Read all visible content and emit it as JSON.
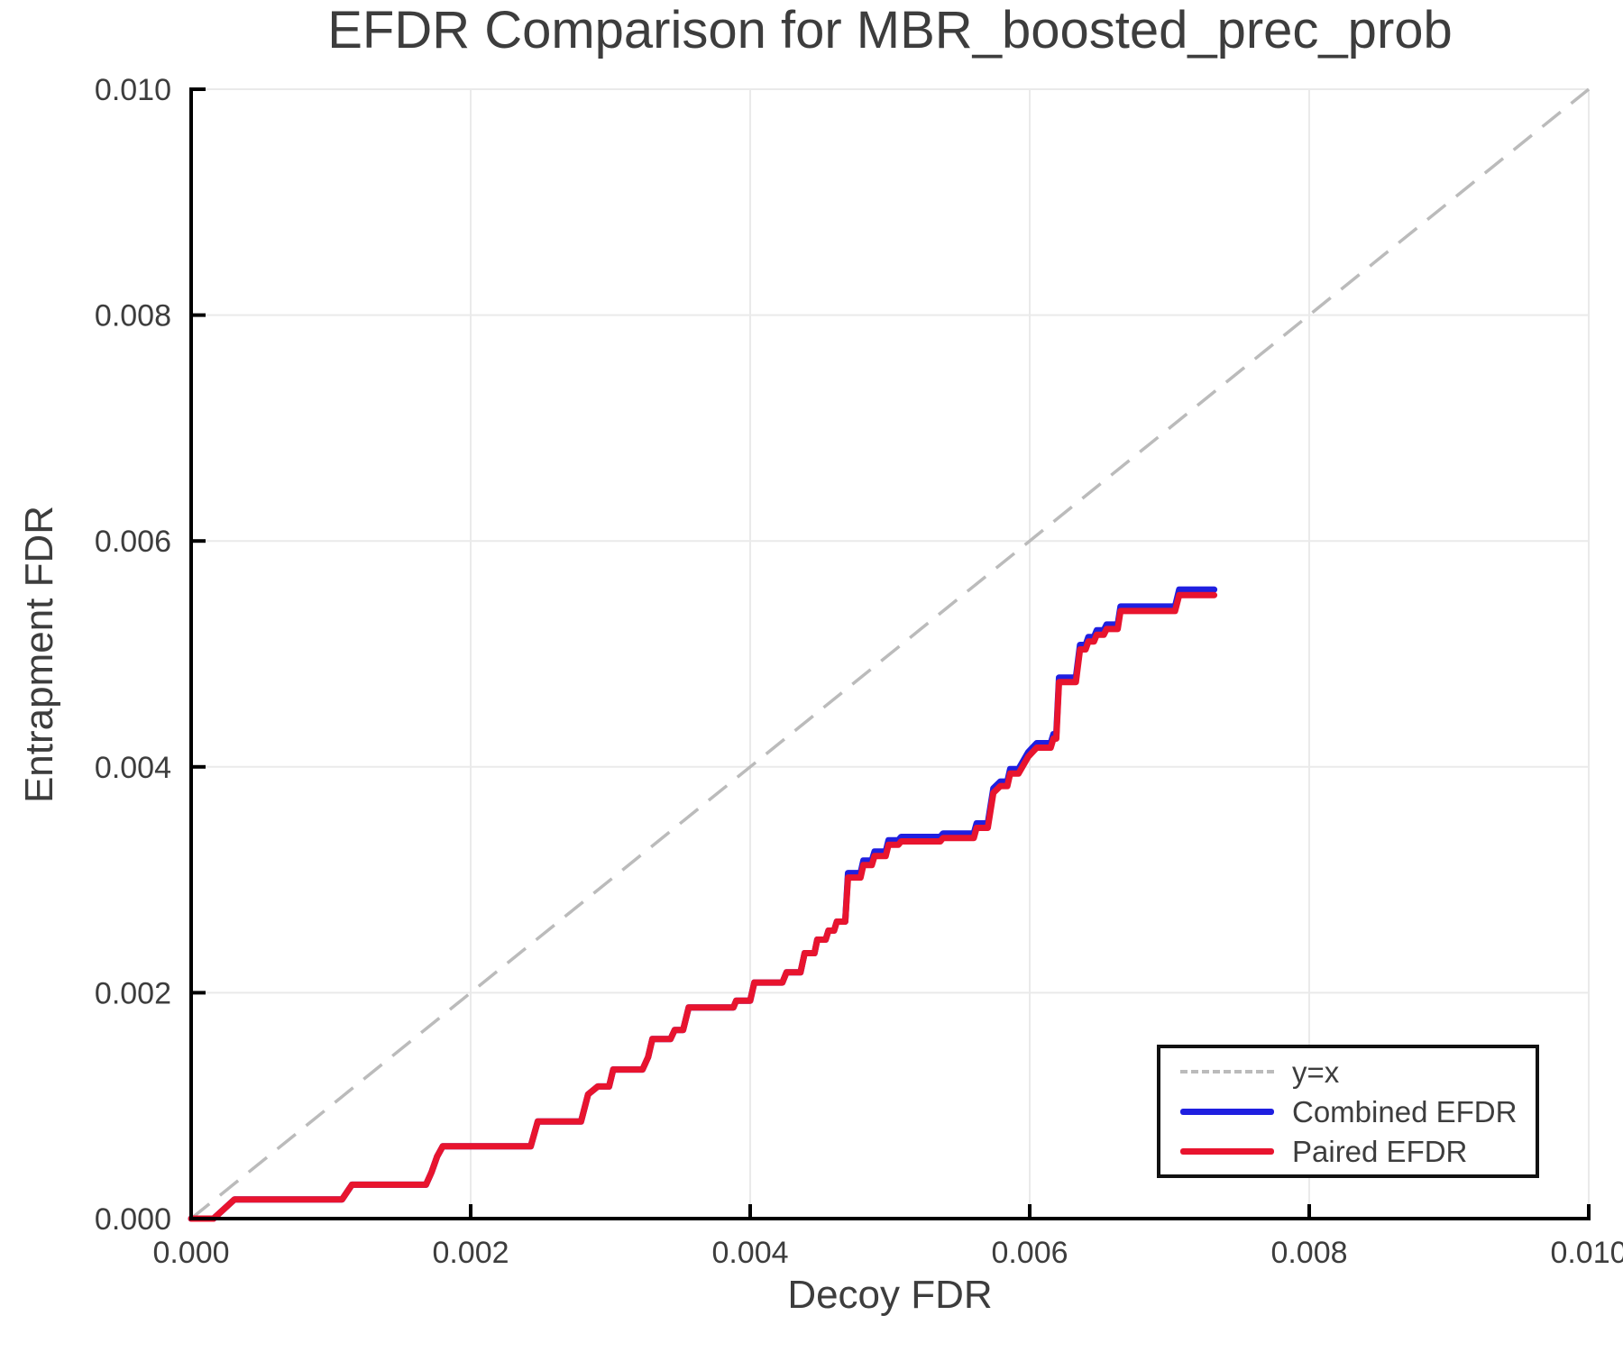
{
  "title": "EFDR Comparison for MBR_boosted_prec_prob",
  "axes": {
    "x_label": "Decoy FDR",
    "y_label": "Entrapment FDR",
    "x_tick_labels": [
      "0.000",
      "0.002",
      "0.004",
      "0.006",
      "0.008",
      "0.010"
    ],
    "x_tick_values": [
      0.0,
      0.002,
      0.004,
      0.006,
      0.008,
      0.01
    ],
    "y_tick_labels": [
      "0.000",
      "0.002",
      "0.004",
      "0.006",
      "0.008",
      "0.010"
    ],
    "y_tick_values": [
      0.0,
      0.002,
      0.004,
      0.006,
      0.008,
      0.01
    ]
  },
  "colors": {
    "grid": "#eaeaea",
    "spine": "#000000",
    "text": "#3d3d3d",
    "diagonal": "#bbbbbb",
    "combined": "#1f1fe0",
    "paired": "#e8142e"
  },
  "legend": {
    "items": [
      {
        "label": "y=x",
        "style": "dashed",
        "color": "#bbbbbb"
      },
      {
        "label": "Combined EFDR",
        "style": "solid",
        "color": "#1f1fe0"
      },
      {
        "label": "Paired EFDR",
        "style": "solid",
        "color": "#e8142e"
      }
    ]
  },
  "chart_data": {
    "type": "line",
    "title": "EFDR Comparison for MBR_boosted_prec_prob",
    "xlabel": "Decoy FDR",
    "ylabel": "Entrapment FDR",
    "xlim": [
      0.0,
      0.01
    ],
    "ylim": [
      0.0,
      0.01
    ],
    "grid": true,
    "legend_position": "lower right",
    "series": [
      {
        "name": "y=x",
        "style": "dashed",
        "color": "#bbbbbb",
        "points": [
          [
            0.0,
            0.0
          ],
          [
            0.01,
            0.01
          ]
        ]
      },
      {
        "name": "Combined EFDR",
        "style": "solid",
        "color": "#1f1fe0",
        "points": [
          [
            0.0,
            0.0
          ],
          [
            0.00016,
            0.0
          ],
          [
            0.00031,
            0.00017
          ],
          [
            0.00108,
            0.00017
          ],
          [
            0.00115,
            0.0003
          ],
          [
            0.00168,
            0.0003
          ],
          [
            0.00172,
            0.00041
          ],
          [
            0.00176,
            0.00055
          ],
          [
            0.0018,
            0.00064
          ],
          [
            0.00243,
            0.00064
          ],
          [
            0.00248,
            0.00086
          ],
          [
            0.00279,
            0.00086
          ],
          [
            0.00284,
            0.0011
          ],
          [
            0.00291,
            0.00117
          ],
          [
            0.00299,
            0.00117
          ],
          [
            0.00302,
            0.00132
          ],
          [
            0.00323,
            0.00132
          ],
          [
            0.00327,
            0.00143
          ],
          [
            0.0033,
            0.00159
          ],
          [
            0.00343,
            0.00159
          ],
          [
            0.00346,
            0.00167
          ],
          [
            0.00352,
            0.00167
          ],
          [
            0.00356,
            0.00187
          ],
          [
            0.00388,
            0.00187
          ],
          [
            0.0039,
            0.00193
          ],
          [
            0.004,
            0.00193
          ],
          [
            0.00403,
            0.00209
          ],
          [
            0.00423,
            0.00209
          ],
          [
            0.00426,
            0.00218
          ],
          [
            0.00436,
            0.00218
          ],
          [
            0.00439,
            0.00235
          ],
          [
            0.00446,
            0.00235
          ],
          [
            0.00448,
            0.00247
          ],
          [
            0.00454,
            0.00247
          ],
          [
            0.00456,
            0.00255
          ],
          [
            0.0046,
            0.00255
          ],
          [
            0.00462,
            0.00263
          ],
          [
            0.00468,
            0.00263
          ],
          [
            0.0047,
            0.00306
          ],
          [
            0.00479,
            0.00306
          ],
          [
            0.00481,
            0.00317
          ],
          [
            0.00487,
            0.00317
          ],
          [
            0.00489,
            0.00325
          ],
          [
            0.00497,
            0.00325
          ],
          [
            0.00499,
            0.00335
          ],
          [
            0.00506,
            0.00335
          ],
          [
            0.00508,
            0.00338
          ],
          [
            0.00536,
            0.00338
          ],
          [
            0.00538,
            0.00341
          ],
          [
            0.0056,
            0.00341
          ],
          [
            0.00562,
            0.0035
          ],
          [
            0.0057,
            0.0035
          ],
          [
            0.00574,
            0.00381
          ],
          [
            0.00579,
            0.00387
          ],
          [
            0.00584,
            0.00387
          ],
          [
            0.00586,
            0.00398
          ],
          [
            0.00592,
            0.00398
          ],
          [
            0.00599,
            0.00413
          ],
          [
            0.00605,
            0.00421
          ],
          [
            0.00615,
            0.00421
          ],
          [
            0.00617,
            0.00429
          ],
          [
            0.00619,
            0.00429
          ],
          [
            0.00621,
            0.00479
          ],
          [
            0.00633,
            0.00479
          ],
          [
            0.00636,
            0.00508
          ],
          [
            0.0064,
            0.00508
          ],
          [
            0.00642,
            0.00515
          ],
          [
            0.00646,
            0.00515
          ],
          [
            0.00648,
            0.00521
          ],
          [
            0.00653,
            0.00521
          ],
          [
            0.00655,
            0.00526
          ],
          [
            0.00663,
            0.00526
          ],
          [
            0.00665,
            0.00542
          ],
          [
            0.00704,
            0.00542
          ],
          [
            0.00707,
            0.00557
          ],
          [
            0.00732,
            0.00557
          ]
        ]
      },
      {
        "name": "Paired EFDR",
        "style": "solid",
        "color": "#e8142e",
        "points": [
          [
            0.0,
            0.0
          ],
          [
            0.00016,
            0.0
          ],
          [
            0.00031,
            0.00017
          ],
          [
            0.00108,
            0.00017
          ],
          [
            0.00115,
            0.0003
          ],
          [
            0.00168,
            0.0003
          ],
          [
            0.00172,
            0.00041
          ],
          [
            0.00176,
            0.00055
          ],
          [
            0.0018,
            0.00064
          ],
          [
            0.00243,
            0.00064
          ],
          [
            0.00248,
            0.00086
          ],
          [
            0.00279,
            0.00086
          ],
          [
            0.00284,
            0.0011
          ],
          [
            0.00291,
            0.00117
          ],
          [
            0.00299,
            0.00117
          ],
          [
            0.00302,
            0.00132
          ],
          [
            0.00323,
            0.00132
          ],
          [
            0.00327,
            0.00143
          ],
          [
            0.0033,
            0.00159
          ],
          [
            0.00343,
            0.00159
          ],
          [
            0.00346,
            0.00167
          ],
          [
            0.00352,
            0.00167
          ],
          [
            0.00356,
            0.00187
          ],
          [
            0.00388,
            0.00187
          ],
          [
            0.0039,
            0.00193
          ],
          [
            0.004,
            0.00193
          ],
          [
            0.00403,
            0.00209
          ],
          [
            0.00423,
            0.00209
          ],
          [
            0.00426,
            0.00218
          ],
          [
            0.00436,
            0.00218
          ],
          [
            0.00439,
            0.00235
          ],
          [
            0.00446,
            0.00235
          ],
          [
            0.00448,
            0.00247
          ],
          [
            0.00454,
            0.00247
          ],
          [
            0.00456,
            0.00255
          ],
          [
            0.0046,
            0.00255
          ],
          [
            0.00462,
            0.00263
          ],
          [
            0.00468,
            0.00263
          ],
          [
            0.0047,
            0.00302
          ],
          [
            0.00479,
            0.00302
          ],
          [
            0.00481,
            0.00313
          ],
          [
            0.00487,
            0.00313
          ],
          [
            0.00489,
            0.00321
          ],
          [
            0.00497,
            0.00321
          ],
          [
            0.00499,
            0.00331
          ],
          [
            0.00506,
            0.00331
          ],
          [
            0.00508,
            0.00334
          ],
          [
            0.00536,
            0.00334
          ],
          [
            0.00538,
            0.00337
          ],
          [
            0.0056,
            0.00337
          ],
          [
            0.00562,
            0.00346
          ],
          [
            0.0057,
            0.00346
          ],
          [
            0.00574,
            0.00377
          ],
          [
            0.00579,
            0.00383
          ],
          [
            0.00584,
            0.00383
          ],
          [
            0.00586,
            0.00394
          ],
          [
            0.00592,
            0.00394
          ],
          [
            0.00599,
            0.00409
          ],
          [
            0.00605,
            0.00417
          ],
          [
            0.00615,
            0.00417
          ],
          [
            0.00617,
            0.00425
          ],
          [
            0.00619,
            0.00425
          ],
          [
            0.00621,
            0.00475
          ],
          [
            0.00633,
            0.00475
          ],
          [
            0.00636,
            0.00504
          ],
          [
            0.0064,
            0.00504
          ],
          [
            0.00642,
            0.00511
          ],
          [
            0.00646,
            0.00511
          ],
          [
            0.00648,
            0.00517
          ],
          [
            0.00653,
            0.00517
          ],
          [
            0.00655,
            0.00522
          ],
          [
            0.00663,
            0.00522
          ],
          [
            0.00665,
            0.00538
          ],
          [
            0.00704,
            0.00538
          ],
          [
            0.00707,
            0.00552
          ],
          [
            0.00732,
            0.00552
          ]
        ]
      }
    ]
  }
}
